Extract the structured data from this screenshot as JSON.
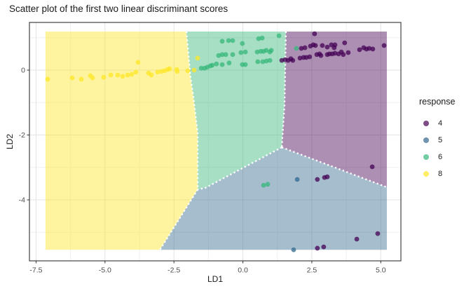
{
  "title": "Scatter plot of the first two linear discriminant scores",
  "axes": {
    "x_label": "LD1",
    "y_label": "LD2",
    "x_ticks": [
      -7.5,
      -5.0,
      -2.5,
      0.0,
      2.5,
      5.0
    ],
    "x_tick_labels": [
      "-7.5",
      "-5.0",
      "-2.5",
      "0.0",
      "2.5",
      "5.0"
    ],
    "x_minor_ticks": [
      -6.25,
      -3.75,
      -1.25,
      1.25,
      3.75
    ],
    "y_ticks": [
      0,
      -2,
      -4
    ],
    "y_tick_labels": [
      "0",
      "-2",
      "-4"
    ],
    "y_minor_ticks": [
      1,
      -1,
      -3,
      -5
    ]
  },
  "legend": {
    "title": "response",
    "items": [
      {
        "label": "4",
        "color": "#440154"
      },
      {
        "label": "5",
        "color": "#31688E"
      },
      {
        "label": "6",
        "color": "#35B779"
      },
      {
        "label": "8",
        "color": "#FDE725"
      }
    ]
  },
  "style": {
    "grid_major_color": "#E3E3E3",
    "grid_minor_color": "#F0F0F0",
    "panel_border_color": "#424242",
    "tick_color": "#333333",
    "tick_label_color": "#4D4D4D",
    "boundary_color": "#FFFFFF",
    "region_fill_opacity": 0.44,
    "point_opacity": 0.75
  },
  "chart_data": {
    "type": "scatter",
    "title": "Scatter plot of the first two linear discriminant scores",
    "xlabel": "LD1",
    "ylabel": "LD2",
    "xlim": [
      -7.74,
      5.73
    ],
    "ylim": [
      -5.88,
      1.47
    ],
    "grid": true,
    "legend_position": "right",
    "legend_title": "response",
    "series": [
      {
        "name": "4",
        "color": "#440154",
        "points": [
          [
            1.41,
            0.3
          ],
          [
            1.53,
            0.32
          ],
          [
            1.64,
            0.3
          ],
          [
            1.74,
            0.35
          ],
          [
            1.81,
            0.3
          ],
          [
            2.6,
            1.12
          ],
          [
            2.12,
            0.67
          ],
          [
            2.25,
            0.69
          ],
          [
            2.45,
            0.74
          ],
          [
            2.55,
            0.78
          ],
          [
            2.63,
            0.76
          ],
          [
            2.88,
            0.76
          ],
          [
            3.06,
            0.71
          ],
          [
            3.21,
            0.78
          ],
          [
            3.31,
            0.69
          ],
          [
            3.34,
            0.78
          ],
          [
            3.69,
            0.84
          ],
          [
            2.07,
            0.37
          ],
          [
            2.2,
            0.39
          ],
          [
            2.3,
            0.39
          ],
          [
            2.42,
            0.41
          ],
          [
            2.68,
            0.48
          ],
          [
            2.78,
            0.5
          ],
          [
            2.83,
            0.45
          ],
          [
            3.06,
            0.48
          ],
          [
            3.14,
            0.5
          ],
          [
            3.24,
            0.5
          ],
          [
            3.34,
            0.52
          ],
          [
            3.47,
            0.5
          ],
          [
            3.57,
            0.56
          ],
          [
            3.64,
            0.48
          ],
          [
            3.82,
            0.54
          ],
          [
            4.23,
            0.63
          ],
          [
            4.38,
            0.69
          ],
          [
            4.48,
            0.65
          ],
          [
            4.58,
            0.67
          ],
          [
            4.71,
            0.65
          ],
          [
            5.12,
            0.76
          ],
          [
            4.69,
            -2.98
          ],
          [
            2.7,
            -3.37
          ],
          [
            2.96,
            -3.31
          ],
          [
            3.06,
            -3.29
          ],
          [
            4.13,
            -5.21
          ],
          [
            4.89,
            -5.04
          ],
          [
            2.7,
            -5.49
          ],
          [
            2.93,
            -5.45
          ]
        ]
      },
      {
        "name": "5",
        "color": "#31688E",
        "points": [
          [
            1.97,
            -3.37
          ],
          [
            1.84,
            -5.54
          ]
        ]
      },
      {
        "name": "6",
        "color": "#35B779",
        "points": [
          [
            -1.51,
            0.06
          ],
          [
            -1.39,
            0.06
          ],
          [
            -1.29,
            0.09
          ],
          [
            -1.18,
            0.13
          ],
          [
            -1.11,
            0.15
          ],
          [
            -0.96,
            0.19
          ],
          [
            -0.88,
            0.45
          ],
          [
            -0.75,
            0.89
          ],
          [
            -0.75,
            0.48
          ],
          [
            -0.75,
            0.17
          ],
          [
            -0.62,
            0.48
          ],
          [
            -0.52,
            0.91
          ],
          [
            -0.5,
            0.22
          ],
          [
            -0.37,
            0.91
          ],
          [
            -0.37,
            0.48
          ],
          [
            -0.07,
            0.54
          ],
          [
            -0.02,
            0.82
          ],
          [
            -0.02,
            0.17
          ],
          [
            0.09,
            0.56
          ],
          [
            0.09,
            0.17
          ],
          [
            0.52,
            0.56
          ],
          [
            0.54,
            0.26
          ],
          [
            0.57,
            0.97
          ],
          [
            0.65,
            0.58
          ],
          [
            0.7,
            0.99
          ],
          [
            0.72,
            0.26
          ],
          [
            0.75,
            0.58
          ],
          [
            0.85,
            0.61
          ],
          [
            0.85,
            0.28
          ],
          [
            0.98,
            0.56
          ],
          [
            0.98,
            0.3
          ],
          [
            1.03,
            0.61
          ],
          [
            1.31,
            1.06
          ],
          [
            1.94,
            0.67
          ],
          [
            0.75,
            -3.55
          ],
          [
            0.9,
            -3.52
          ]
        ]
      },
      {
        "name": "8",
        "color": "#FDE725",
        "points": [
          [
            -7.08,
            -0.28
          ],
          [
            -6.19,
            -0.24
          ],
          [
            -5.86,
            -0.28
          ],
          [
            -5.53,
            -0.17
          ],
          [
            -5.45,
            -0.24
          ],
          [
            -5.05,
            -0.22
          ],
          [
            -4.79,
            -0.15
          ],
          [
            -4.54,
            -0.15
          ],
          [
            -4.36,
            -0.19
          ],
          [
            -4.18,
            -0.15
          ],
          [
            -4.03,
            -0.13
          ],
          [
            -3.88,
            -0.06
          ],
          [
            -3.8,
            0.24
          ],
          [
            -3.42,
            -0.09
          ],
          [
            -3.32,
            -0.15
          ],
          [
            -3.09,
            -0.06
          ],
          [
            -2.96,
            -0.04
          ],
          [
            -2.84,
            -0.02
          ],
          [
            -2.73,
            0.02
          ],
          [
            -2.66,
            0.04
          ],
          [
            -2.4,
            0.02
          ],
          [
            -2.38,
            -0.04
          ],
          [
            -2.0,
            -0.02
          ],
          [
            -1.77,
            0.0
          ],
          [
            -1.64,
            0.37
          ]
        ]
      }
    ],
    "decision_regions": [
      {
        "class": "8",
        "color": "#FDE725",
        "polygon": [
          [
            -7.16,
            1.19
          ],
          [
            -2.05,
            1.19
          ],
          [
            -1.9,
            -0.22
          ],
          [
            -1.79,
            -0.86
          ],
          [
            -1.64,
            -1.95
          ],
          [
            -1.64,
            -3.68
          ],
          [
            -3.01,
            -5.54
          ],
          [
            -7.16,
            -5.54
          ]
        ]
      },
      {
        "class": "6",
        "color": "#35B779",
        "polygon": [
          [
            -2.05,
            1.19
          ],
          [
            1.56,
            1.19
          ],
          [
            1.51,
            -1.08
          ],
          [
            1.41,
            -2.38
          ],
          [
            -1.36,
            -3.63
          ],
          [
            -1.64,
            -3.68
          ],
          [
            -1.64,
            -1.95
          ],
          [
            -1.79,
            -0.86
          ],
          [
            -1.9,
            -0.22
          ]
        ]
      },
      {
        "class": "4",
        "color": "#440154",
        "polygon": [
          [
            1.56,
            1.19
          ],
          [
            5.22,
            1.19
          ],
          [
            5.22,
            -3.61
          ],
          [
            1.41,
            -2.38
          ],
          [
            1.51,
            -1.08
          ]
        ]
      },
      {
        "class": "5",
        "color": "#31688E",
        "polygon": [
          [
            1.41,
            -2.38
          ],
          [
            5.22,
            -3.61
          ],
          [
            5.22,
            -5.54
          ],
          [
            -3.01,
            -5.54
          ],
          [
            -1.64,
            -3.68
          ],
          [
            -1.36,
            -3.63
          ]
        ]
      }
    ],
    "region_boundaries": [
      [
        [
          -2.05,
          1.19
        ],
        [
          -1.9,
          -0.22
        ],
        [
          -1.79,
          -0.86
        ],
        [
          -1.64,
          -1.95
        ],
        [
          -1.64,
          -3.68
        ]
      ],
      [
        [
          1.56,
          1.19
        ],
        [
          1.51,
          -1.08
        ],
        [
          1.41,
          -2.38
        ]
      ],
      [
        [
          1.41,
          -2.38
        ],
        [
          -1.36,
          -3.63
        ],
        [
          -1.64,
          -3.68
        ]
      ],
      [
        [
          -1.64,
          -3.68
        ],
        [
          -3.01,
          -5.54
        ]
      ],
      [
        [
          1.41,
          -2.38
        ],
        [
          5.22,
          -3.61
        ]
      ]
    ]
  }
}
